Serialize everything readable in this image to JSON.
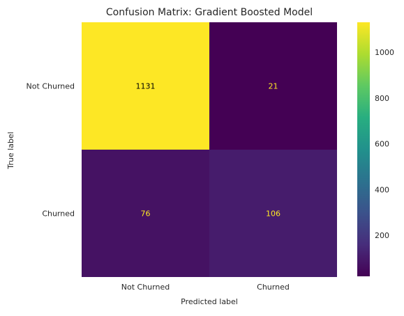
{
  "chart_data": {
    "type": "heatmap",
    "title": "Confusion Matrix: Gradient Boosted Model",
    "xlabel": "Predicted label",
    "ylabel": "True label",
    "x_categories": [
      "Not Churned",
      "Churned"
    ],
    "y_categories": [
      "Not Churned",
      "Churned"
    ],
    "values": [
      [
        1131,
        21
      ],
      [
        76,
        106
      ]
    ],
    "colormap": "viridis",
    "colorbar": {
      "range": [
        21,
        1131
      ],
      "ticks": [
        200,
        400,
        600,
        800,
        1000
      ]
    },
    "grid": false
  },
  "colors": {
    "cell_text_on_bright": "#000000",
    "cell_text_on_dark": "#fde725"
  }
}
